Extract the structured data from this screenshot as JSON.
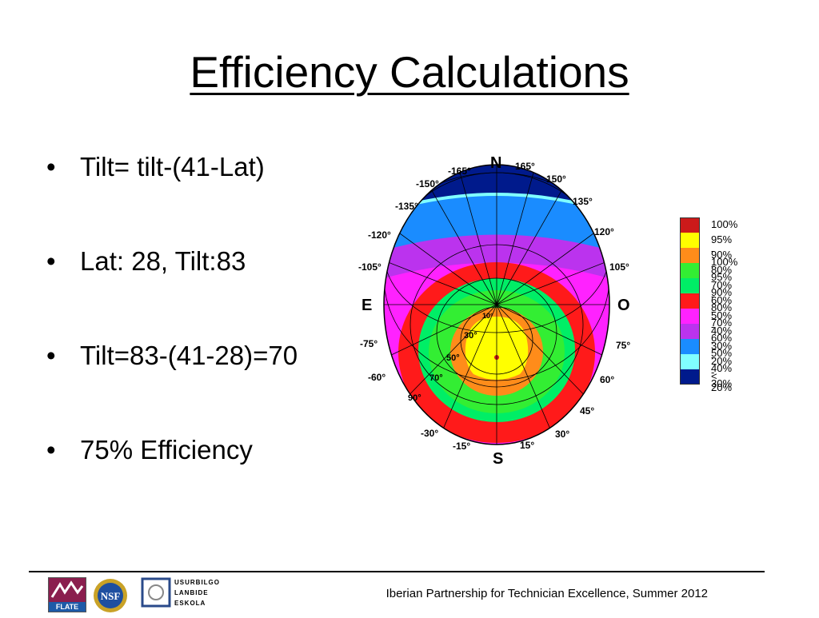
{
  "slide": {
    "title": "Efficiency Calculations",
    "bullets": [
      "Tilt= tilt-(41-Lat)",
      "Lat: 28, Tilt:83",
      "Tilt=83-(41-28)=70",
      "75% Efficiency"
    ],
    "bullet_glyph": "•"
  },
  "diagram": {
    "compass": {
      "north": "N",
      "south": "S",
      "east": "E",
      "west": "O"
    },
    "azimuth_labels": {
      "m165": "-165°",
      "p165": "165°",
      "m150": "-150°",
      "p150": "150°",
      "m135": "-135°",
      "p135": "135°",
      "m120": "-120°",
      "p120": "120°",
      "m105": "-105°",
      "p105": "105°",
      "m75": "-75°",
      "p75": "75°",
      "m60": "-60°",
      "p60": "60°",
      "p45": "45°",
      "m30": "-30°",
      "p30": "30°",
      "m15": "-15°",
      "p15": "15°"
    },
    "tilt_labels": {
      "t10": "10°",
      "t30": "30°",
      "t50": "50°",
      "t70": "70°",
      "t90": "90°"
    },
    "colors": {
      "c100": "#cc1a1a",
      "c95": "#ffff00",
      "c90": "#ff8c1a",
      "c80": "#33ee33",
      "c70": "#00ee66",
      "c60": "#ff1a1a",
      "c50": "#ff22ff",
      "c40": "#bb33ee",
      "c30": "#1a8cff",
      "c20": "#80ffff",
      "clow": "#001a8c"
    },
    "legend": [
      {
        "label": "100%",
        "color": "#cc1a1a"
      },
      {
        "label": "95% - 100%",
        "color": "#ffff00"
      },
      {
        "label": "90% - 95%",
        "color": "#ff8c1a"
      },
      {
        "label": "80% - 90%",
        "color": "#33ee33"
      },
      {
        "label": "70% - 80%",
        "color": "#00ee66"
      },
      {
        "label": "60% - 70%",
        "color": "#ff1a1a"
      },
      {
        "label": "50% - 60%",
        "color": "#ff22ff"
      },
      {
        "label": "40% - 50%",
        "color": "#bb33ee"
      },
      {
        "label": "30% - 40%",
        "color": "#1a8cff"
      },
      {
        "label": "20% - 30%",
        "color": "#80ffff"
      },
      {
        "label": "< 20%",
        "color": "#001a8c"
      }
    ]
  },
  "footer": {
    "text": "Iberian Partnership for Technician Excellence, Summer 2012",
    "logos": {
      "flate": "FLATE",
      "nsf": "NSF",
      "usurbilgo": [
        "USURBILGO",
        "LANBIDE",
        "ESKOLA"
      ]
    }
  }
}
